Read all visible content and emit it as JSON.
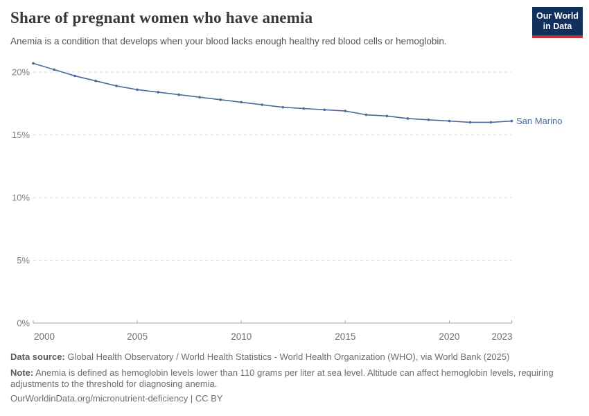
{
  "header": {
    "title": "Share of pregnant women who have anemia",
    "subtitle": "Anemia is a condition that develops when your blood lacks enough healthy red blood cells or hemoglobin.",
    "logo_line1": "Our World",
    "logo_line2": "in Data"
  },
  "chart_data": {
    "type": "line",
    "title": "Share of pregnant women who have anemia",
    "x": [
      2000,
      2001,
      2002,
      2003,
      2004,
      2005,
      2006,
      2007,
      2008,
      2009,
      2010,
      2011,
      2012,
      2013,
      2014,
      2015,
      2016,
      2017,
      2018,
      2019,
      2020,
      2021,
      2022,
      2023
    ],
    "series": [
      {
        "name": "San Marino",
        "color": "#4C6A9C",
        "values": [
          20.7,
          20.2,
          19.7,
          19.3,
          18.9,
          18.6,
          18.4,
          18.2,
          18.0,
          17.8,
          17.6,
          17.4,
          17.2,
          17.1,
          17.0,
          16.9,
          16.6,
          16.5,
          16.3,
          16.2,
          16.1,
          16.0,
          16.0,
          16.1
        ]
      }
    ],
    "end_label": "San Marino",
    "xlabel": "",
    "ylabel": "",
    "xlim": [
      2000,
      2023
    ],
    "ylim": [
      0,
      20.8
    ],
    "yticks": [
      {
        "value": 0,
        "label": "0%"
      },
      {
        "value": 5,
        "label": "5%"
      },
      {
        "value": 10,
        "label": "10%"
      },
      {
        "value": 15,
        "label": "15%"
      },
      {
        "value": 20,
        "label": "20%"
      }
    ],
    "xticks": [
      {
        "value": 2000,
        "label": "2000"
      },
      {
        "value": 2005,
        "label": "2005"
      },
      {
        "value": 2010,
        "label": "2010"
      },
      {
        "value": 2015,
        "label": "2015"
      },
      {
        "value": 2020,
        "label": "2020"
      },
      {
        "value": 2023,
        "label": "2023"
      }
    ],
    "grid": "horizontal-dashed",
    "legend_position": "end-of-line"
  },
  "footer": {
    "datasource_label": "Data source:",
    "datasource_text": "Global Health Observatory / World Health Statistics - World Health Organization (WHO), via World Bank (2025)",
    "note_label": "Note:",
    "note_text": "Anemia is defined as hemoglobin levels lower than 110 grams per liter at sea level. Altitude can affect hemoglobin levels, requiring adjustments to the threshold for diagnosing anemia.",
    "license": "OurWorldinData.org/micronutrient-deficiency | CC BY"
  },
  "colors": {
    "line": "#4C6A9C",
    "grid": "#dddddd",
    "axis": "#a5a5a5",
    "tick_label": "#6e6e6e",
    "title": "#383838",
    "subtitle": "#555555",
    "footer_text": "#6e6e6e",
    "logo_bg": "#12305b",
    "logo_red": "#c6352c"
  }
}
